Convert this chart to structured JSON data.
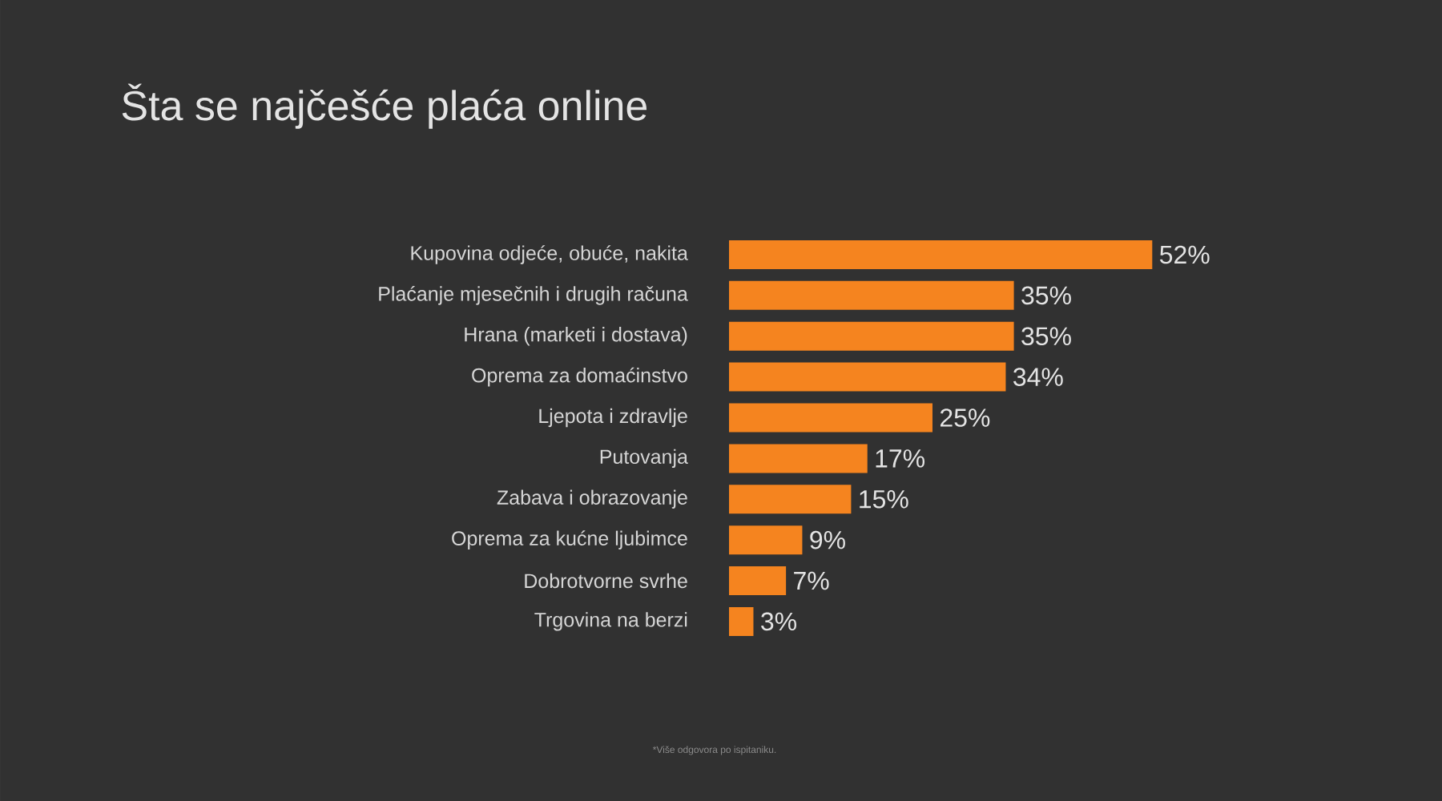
{
  "chart_data": {
    "type": "bar",
    "orientation": "horizontal",
    "title": "Šta se najčešće plaća online",
    "categories": [
      "Kupovina odjeće, obuće, nakita",
      "Plaćanje mjesečnih i drugih računa",
      "Hrana (marketi i dostava)",
      "Oprema za domaćinstvo",
      "Ljepota i zdravlje",
      "Putovanja",
      "Zabava i obrazovanje",
      "Oprema za kućne ljubimce",
      "Dobrotvorne svrhe",
      "Trgovina na berzi"
    ],
    "values": [
      52,
      35,
      35,
      34,
      25,
      17,
      15,
      9,
      7,
      3
    ],
    "value_labels": [
      "52%",
      "35%",
      "35%",
      "34%",
      "25%",
      "17%",
      "15%",
      "9%",
      "7%",
      "3%"
    ],
    "color": "#f5841f",
    "annotations": [
      "*Više odgovora po ispitaniku."
    ]
  }
}
